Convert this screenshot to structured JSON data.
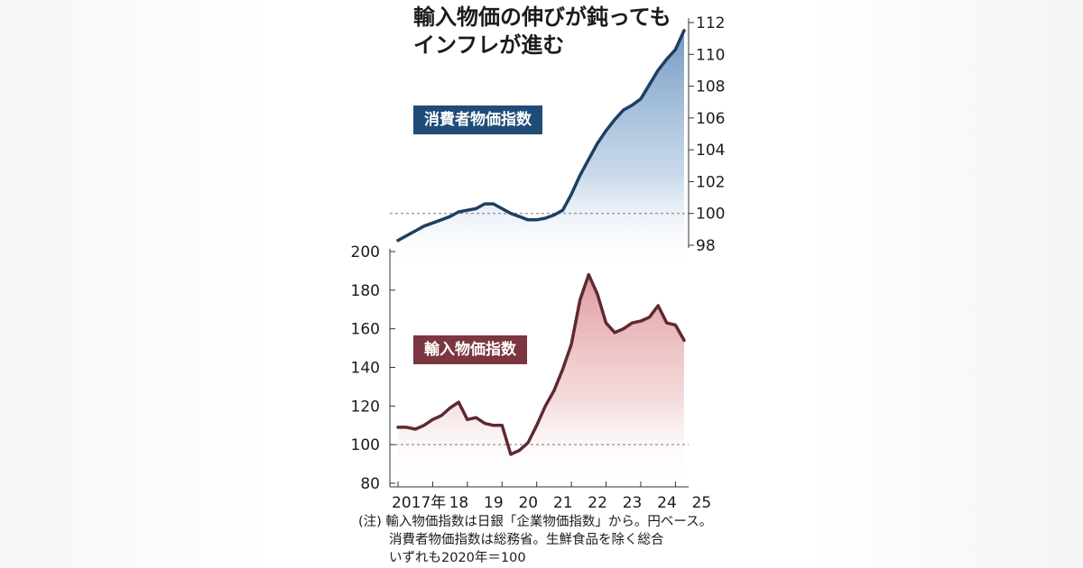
{
  "title_line1": "輸入物価の伸びが鈍っても",
  "title_line2": "インフレが進む",
  "note": {
    "line1": "(注) 輸入物価指数は日銀「企業物価指数」から。円ベース。",
    "line2": "消費者物価指数は総務省。生鮮食品を除く総合",
    "line3": "いずれも2020年＝100"
  },
  "colors": {
    "cpi": "#1e3f62",
    "cpi_label": "#204d78",
    "imp": "#5e2a30",
    "imp_label": "#7c3641"
  },
  "chart_data": [
    {
      "type": "area",
      "series": [
        {
          "name": "消費者物価指数",
          "x": [
            2017.0,
            2017.25,
            2017.5,
            2017.75,
            2018.0,
            2018.25,
            2018.5,
            2018.75,
            2019.0,
            2019.25,
            2019.5,
            2019.75,
            2020.0,
            2020.25,
            2020.5,
            2020.75,
            2021.0,
            2021.25,
            2021.5,
            2021.75,
            2022.0,
            2022.25,
            2022.5,
            2022.75,
            2023.0,
            2023.25,
            2023.5,
            2023.75,
            2024.0,
            2024.25,
            2024.5,
            2024.75,
            2025.0,
            2025.25
          ],
          "values": [
            98.3,
            98.6,
            98.9,
            99.2,
            99.4,
            99.6,
            99.8,
            100.1,
            100.2,
            100.3,
            100.6,
            100.6,
            100.3,
            100.0,
            99.8,
            99.6,
            99.6,
            99.7,
            99.9,
            100.2,
            101.2,
            102.4,
            103.4,
            104.4,
            105.2,
            105.9,
            106.5,
            106.8,
            107.2,
            108.1,
            109.0,
            109.7,
            110.3,
            111.5
          ]
        }
      ],
      "yticks": [
        "98",
        "100",
        "102",
        "104",
        "106",
        "108",
        "110",
        "112"
      ],
      "ylim": [
        98,
        112
      ],
      "reference_line": 100,
      "y_axis_position": "right"
    },
    {
      "type": "area",
      "series": [
        {
          "name": "輸入物価指数",
          "x": [
            2017.0,
            2017.25,
            2017.5,
            2017.75,
            2018.0,
            2018.25,
            2018.5,
            2018.75,
            2019.0,
            2019.25,
            2019.5,
            2019.75,
            2020.0,
            2020.25,
            2020.5,
            2020.75,
            2021.0,
            2021.25,
            2021.5,
            2021.75,
            2022.0,
            2022.25,
            2022.5,
            2022.75,
            2023.0,
            2023.25,
            2023.5,
            2023.75,
            2024.0,
            2024.25,
            2024.5,
            2024.75,
            2025.0,
            2025.25
          ],
          "values": [
            109,
            109,
            108,
            110,
            113,
            115,
            119,
            122,
            113,
            114,
            111,
            110,
            110,
            95,
            97,
            101,
            110,
            120,
            128,
            139,
            152,
            175,
            188,
            178,
            163,
            158,
            160,
            163,
            164,
            166,
            172,
            163,
            162,
            154
          ]
        }
      ],
      "yticks": [
        "80",
        "100",
        "120",
        "140",
        "160",
        "180",
        "200"
      ],
      "ylim": [
        80,
        200
      ],
      "reference_line": 100,
      "y_axis_position": "left"
    }
  ],
  "x_axis": {
    "tick_labels": [
      "2017年",
      "18",
      "19",
      "20",
      "21",
      "22",
      "23",
      "24",
      "25"
    ],
    "tick_values": [
      2017.0,
      2018.0,
      2019.0,
      2020.0,
      2021.0,
      2022.0,
      2023.0,
      2024.0,
      2025.0
    ]
  }
}
